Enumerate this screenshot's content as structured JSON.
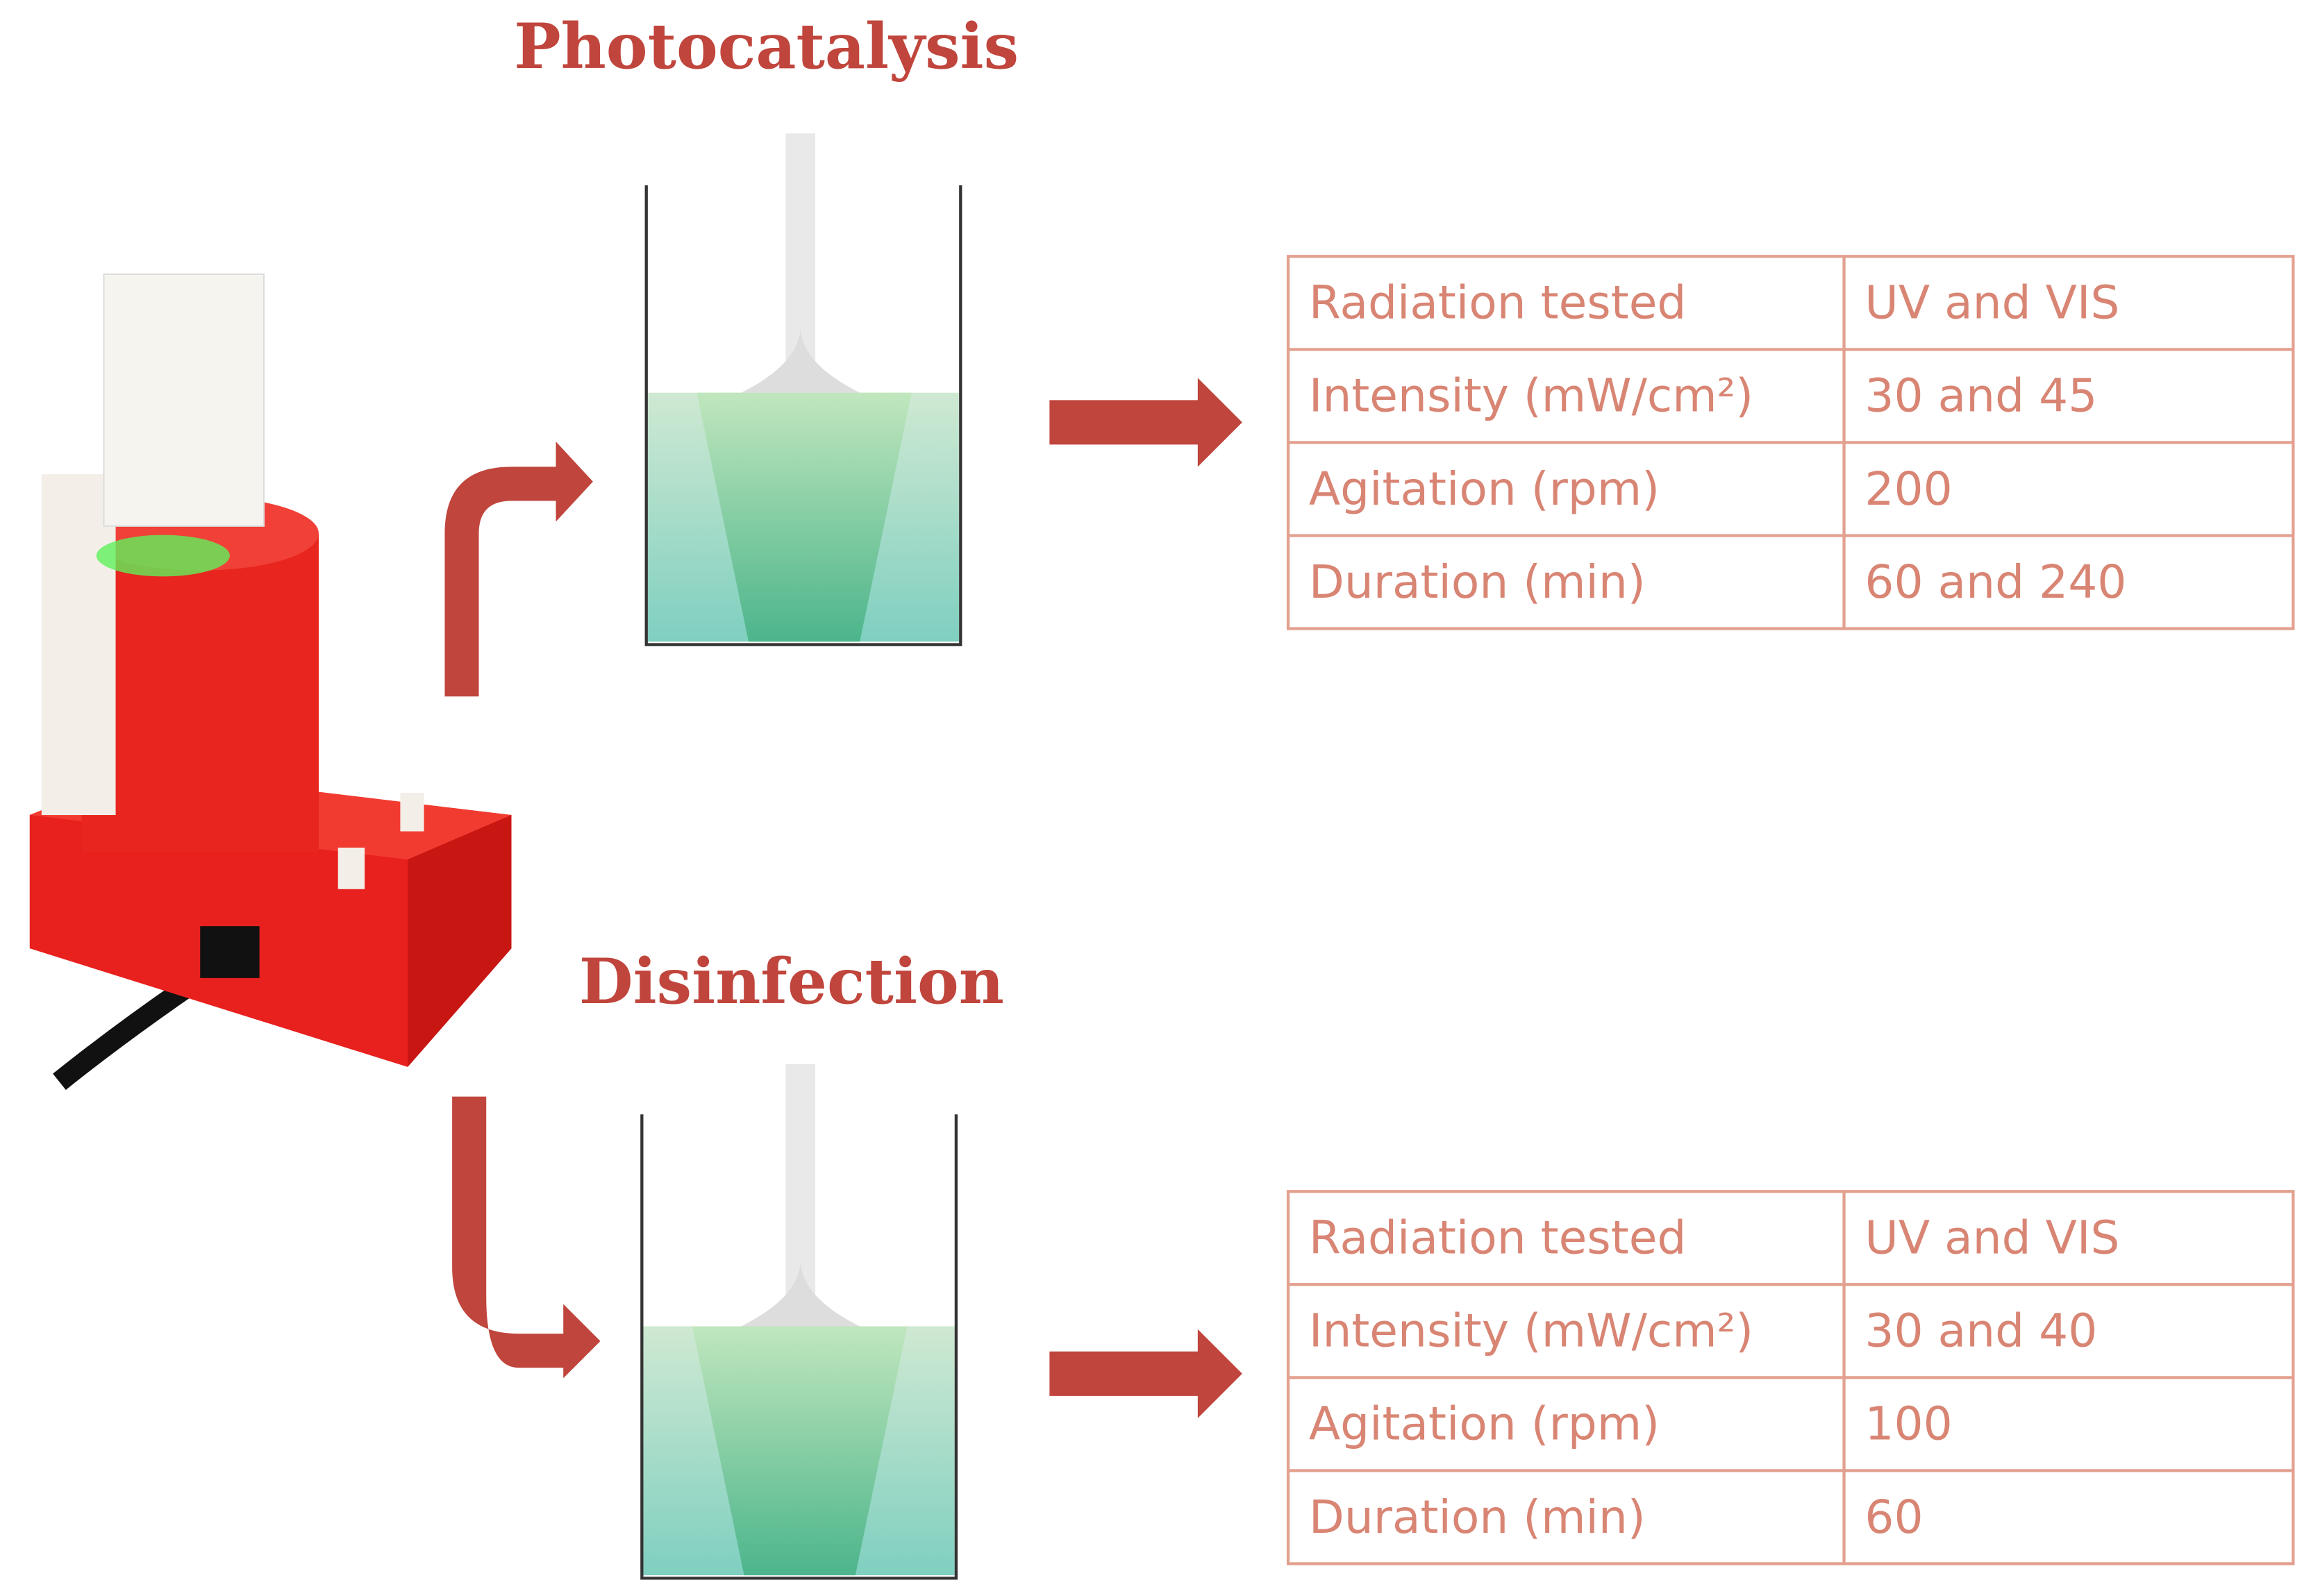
{
  "sections": [
    {
      "title": "Photocatalysis",
      "table": {
        "rows": [
          [
            "Radiation tested",
            "UV and VIS"
          ],
          [
            "Intensity (mW/cm²)",
            "30 and 45"
          ],
          [
            "Agitation (rpm)",
            "200"
          ],
          [
            "Duration (min)",
            "60 and 240"
          ]
        ]
      }
    },
    {
      "title": "Disinfection",
      "table": {
        "rows": [
          [
            "Radiation tested",
            "UV and VIS"
          ],
          [
            "Intensity (mW/cm²)",
            "30 and 40"
          ],
          [
            "Agitation (rpm)",
            "100"
          ],
          [
            "Duration (min)",
            "60"
          ]
        ]
      }
    }
  ]
}
